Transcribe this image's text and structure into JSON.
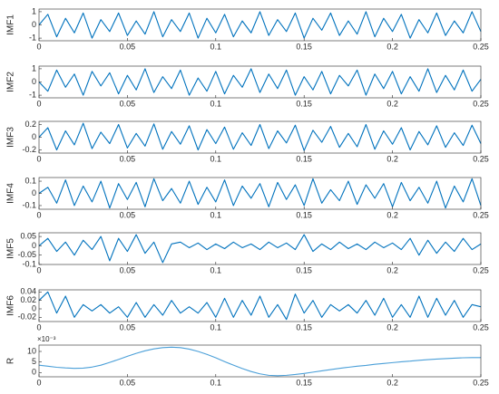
{
  "chart_data": [
    {
      "type": "line",
      "ylabel": "IMF1",
      "color": "#0072bd",
      "xlim": [
        0,
        0.25
      ],
      "xticks": [
        0,
        0.05,
        0.1,
        0.15,
        0.2,
        0.25
      ],
      "ylim": [
        -1.2,
        1.2
      ],
      "yticks": [
        -1,
        0,
        1
      ],
      "x": [
        0,
        0.005,
        0.01,
        0.015,
        0.02,
        0.025,
        0.03,
        0.035,
        0.04,
        0.045,
        0.05,
        0.055,
        0.06,
        0.065,
        0.07,
        0.075,
        0.08,
        0.085,
        0.09,
        0.095,
        0.1,
        0.105,
        0.11,
        0.115,
        0.12,
        0.125,
        0.13,
        0.135,
        0.14,
        0.145,
        0.15,
        0.155,
        0.16,
        0.165,
        0.17,
        0.175,
        0.18,
        0.185,
        0.19,
        0.195,
        0.2,
        0.205,
        0.21,
        0.215,
        0.22,
        0.225,
        0.23,
        0.235,
        0.24,
        0.245,
        0.25
      ],
      "values": [
        0,
        0.8,
        -0.9,
        0.5,
        -0.6,
        0.9,
        -1,
        0.4,
        -0.5,
        0.9,
        -0.8,
        0.3,
        -0.7,
        1,
        -0.9,
        0.4,
        -0.5,
        0.9,
        -1,
        0.5,
        -0.6,
        0.8,
        -0.9,
        0.3,
        -0.6,
        1,
        -0.8,
        0.4,
        -0.5,
        0.9,
        -1,
        0.5,
        -0.4,
        0.9,
        -0.8,
        0.3,
        -0.7,
        1,
        -0.9,
        0.5,
        -0.5,
        0.8,
        -1,
        0.4,
        -0.6,
        0.9,
        -0.8,
        0.3,
        -0.6,
        1,
        -0.5
      ]
    },
    {
      "type": "line",
      "ylabel": "IMF2",
      "color": "#0072bd",
      "xlim": [
        0,
        0.25
      ],
      "xticks": [
        0,
        0.05,
        0.1,
        0.15,
        0.2,
        0.25
      ],
      "ylim": [
        -1.2,
        1.2
      ],
      "yticks": [
        -1,
        0,
        1
      ],
      "x": [
        0,
        0.005,
        0.01,
        0.015,
        0.02,
        0.025,
        0.03,
        0.035,
        0.04,
        0.045,
        0.05,
        0.055,
        0.06,
        0.065,
        0.07,
        0.075,
        0.08,
        0.085,
        0.09,
        0.095,
        0.1,
        0.105,
        0.11,
        0.115,
        0.12,
        0.125,
        0.13,
        0.135,
        0.14,
        0.145,
        0.15,
        0.155,
        0.16,
        0.165,
        0.17,
        0.175,
        0.18,
        0.185,
        0.19,
        0.195,
        0.2,
        0.205,
        0.21,
        0.215,
        0.22,
        0.225,
        0.23,
        0.235,
        0.24,
        0.245,
        0.25
      ],
      "values": [
        0,
        -0.7,
        0.9,
        -0.4,
        0.6,
        -1,
        0.8,
        -0.3,
        0.7,
        -0.9,
        0.5,
        -0.6,
        1,
        -0.8,
        0.4,
        -0.5,
        0.9,
        -1,
        0.3,
        -0.7,
        0.8,
        -0.9,
        0.5,
        -0.4,
        1,
        -0.8,
        0.6,
        -0.5,
        0.9,
        -1,
        0.4,
        -0.6,
        0.8,
        -0.9,
        0.5,
        -0.3,
        0.9,
        -1,
        0.6,
        -0.5,
        0.8,
        -0.9,
        0.4,
        -0.7,
        1,
        -0.8,
        0.5,
        -0.6,
        0.9,
        -0.7,
        0.2
      ]
    },
    {
      "type": "line",
      "ylabel": "IMF3",
      "color": "#0072bd",
      "xlim": [
        0,
        0.25
      ],
      "xticks": [
        0,
        0.05,
        0.1,
        0.15,
        0.2,
        0.25
      ],
      "ylim": [
        -0.25,
        0.25
      ],
      "yticks": [
        -0.2,
        0,
        0.2
      ],
      "x": [
        0,
        0.005,
        0.01,
        0.015,
        0.02,
        0.025,
        0.03,
        0.035,
        0.04,
        0.045,
        0.05,
        0.055,
        0.06,
        0.065,
        0.07,
        0.075,
        0.08,
        0.085,
        0.09,
        0.095,
        0.1,
        0.105,
        0.11,
        0.115,
        0.12,
        0.125,
        0.13,
        0.135,
        0.14,
        0.145,
        0.15,
        0.155,
        0.16,
        0.165,
        0.17,
        0.175,
        0.18,
        0.185,
        0.19,
        0.195,
        0.2,
        0.205,
        0.21,
        0.215,
        0.22,
        0.225,
        0.23,
        0.235,
        0.24,
        0.245,
        0.25
      ],
      "values": [
        0,
        0.15,
        -0.2,
        0.1,
        -0.12,
        0.22,
        -0.18,
        0.08,
        -0.1,
        0.2,
        -0.17,
        0.06,
        -0.14,
        0.21,
        -0.19,
        0.09,
        -0.11,
        0.18,
        -0.2,
        0.12,
        -0.1,
        0.16,
        -0.19,
        0.07,
        -0.13,
        0.2,
        -0.18,
        0.1,
        -0.09,
        0.19,
        -0.21,
        0.11,
        -0.08,
        0.17,
        -0.16,
        0.06,
        -0.15,
        0.2,
        -0.19,
        0.1,
        -0.11,
        0.15,
        -0.2,
        0.09,
        -0.12,
        0.18,
        -0.16,
        0.07,
        -0.13,
        0.19,
        -0.1
      ]
    },
    {
      "type": "line",
      "ylabel": "IMF4",
      "color": "#0072bd",
      "xlim": [
        0,
        0.25
      ],
      "xticks": [
        0,
        0.05,
        0.1,
        0.15,
        0.2,
        0.25
      ],
      "ylim": [
        -0.13,
        0.13
      ],
      "yticks": [
        -0.1,
        0,
        0.1
      ],
      "x": [
        0,
        0.005,
        0.01,
        0.015,
        0.02,
        0.025,
        0.03,
        0.035,
        0.04,
        0.045,
        0.05,
        0.055,
        0.06,
        0.065,
        0.07,
        0.075,
        0.08,
        0.085,
        0.09,
        0.095,
        0.1,
        0.105,
        0.11,
        0.115,
        0.12,
        0.125,
        0.13,
        0.135,
        0.14,
        0.145,
        0.15,
        0.155,
        0.16,
        0.165,
        0.17,
        0.175,
        0.18,
        0.185,
        0.19,
        0.195,
        0.2,
        0.205,
        0.21,
        0.215,
        0.22,
        0.225,
        0.23,
        0.235,
        0.24,
        0.245,
        0.25
      ],
      "values": [
        0,
        0.05,
        -0.08,
        0.11,
        -0.1,
        0.06,
        -0.07,
        0.1,
        -0.12,
        0.08,
        -0.05,
        0.09,
        -0.11,
        0.12,
        -0.06,
        0.04,
        -0.08,
        0.1,
        -0.09,
        0.05,
        -0.07,
        0.11,
        -0.1,
        0.06,
        -0.04,
        0.08,
        -0.11,
        0.09,
        -0.05,
        0.07,
        -0.1,
        0.12,
        -0.08,
        0.03,
        -0.06,
        0.1,
        -0.09,
        0.07,
        -0.04,
        0.08,
        -0.11,
        0.09,
        -0.06,
        0.05,
        -0.08,
        0.1,
        -0.12,
        0.06,
        -0.07,
        0.12,
        -0.1
      ]
    },
    {
      "type": "line",
      "ylabel": "IMF5",
      "color": "#0072bd",
      "xlim": [
        0,
        0.25
      ],
      "xticks": [
        0,
        0.05,
        0.1,
        0.15,
        0.2,
        0.25
      ],
      "ylim": [
        -0.1,
        0.07
      ],
      "yticks": [
        -0.1,
        -0.05,
        0,
        0.05
      ],
      "x": [
        0,
        0.005,
        0.01,
        0.015,
        0.02,
        0.025,
        0.03,
        0.035,
        0.04,
        0.045,
        0.05,
        0.055,
        0.06,
        0.065,
        0.07,
        0.075,
        0.08,
        0.085,
        0.09,
        0.095,
        0.1,
        0.105,
        0.11,
        0.115,
        0.12,
        0.125,
        0.13,
        0.135,
        0.14,
        0.145,
        0.15,
        0.155,
        0.16,
        0.165,
        0.17,
        0.175,
        0.18,
        0.185,
        0.19,
        0.195,
        0.2,
        0.205,
        0.21,
        0.215,
        0.22,
        0.225,
        0.23,
        0.235,
        0.24,
        0.245,
        0.25
      ],
      "values": [
        0,
        0.04,
        -0.03,
        0.02,
        -0.05,
        0.03,
        -0.02,
        0.05,
        -0.08,
        0.04,
        -0.03,
        0.06,
        -0.04,
        0.02,
        -0.09,
        0.01,
        0.02,
        -0.01,
        0.015,
        -0.02,
        0.01,
        -0.015,
        0.02,
        -0.01,
        0.01,
        -0.02,
        0.02,
        -0.01,
        0.015,
        -0.02,
        0.06,
        -0.03,
        0.01,
        -0.02,
        0.02,
        -0.015,
        0.01,
        -0.02,
        0.02,
        -0.01,
        0.015,
        -0.02,
        0.04,
        -0.05,
        0.03,
        -0.04,
        0.02,
        -0.03,
        0.04,
        -0.02,
        0.01
      ]
    },
    {
      "type": "line",
      "ylabel": "IMF6",
      "color": "#0072bd",
      "xlim": [
        0,
        0.25
      ],
      "xticks": [
        0,
        0.05,
        0.1,
        0.15,
        0.2,
        0.25
      ],
      "ylim": [
        -0.03,
        0.045
      ],
      "yticks": [
        -0.02,
        0,
        0.02,
        0.04
      ],
      "x": [
        0,
        0.005,
        0.01,
        0.015,
        0.02,
        0.025,
        0.03,
        0.035,
        0.04,
        0.045,
        0.05,
        0.055,
        0.06,
        0.065,
        0.07,
        0.075,
        0.08,
        0.085,
        0.09,
        0.095,
        0.1,
        0.105,
        0.11,
        0.115,
        0.12,
        0.125,
        0.13,
        0.135,
        0.14,
        0.145,
        0.15,
        0.155,
        0.16,
        0.165,
        0.17,
        0.175,
        0.18,
        0.185,
        0.19,
        0.195,
        0.2,
        0.205,
        0.21,
        0.215,
        0.22,
        0.225,
        0.23,
        0.235,
        0.24,
        0.245,
        0.25
      ],
      "values": [
        0.02,
        0.04,
        -0.01,
        0.03,
        -0.02,
        0.01,
        -0.005,
        0.01,
        -0.01,
        0.005,
        -0.02,
        0.015,
        -0.02,
        0.01,
        -0.015,
        0.02,
        -0.01,
        0.005,
        -0.01,
        0.015,
        -0.02,
        0.025,
        -0.02,
        0.02,
        -0.015,
        0.03,
        -0.02,
        0.01,
        -0.025,
        0.035,
        -0.01,
        0.02,
        -0.02,
        0.01,
        -0.005,
        0.01,
        -0.01,
        0.02,
        -0.015,
        0.025,
        -0.02,
        0.01,
        -0.02,
        0.03,
        -0.02,
        0.025,
        -0.015,
        0.02,
        -0.02,
        0.01,
        0.005
      ]
    },
    {
      "type": "line",
      "ylabel": "R",
      "exponent_label": "×10⁻³",
      "color": "#4a9fd8",
      "xlim": [
        0,
        0.25
      ],
      "xticks": [
        0,
        0.05,
        0.1,
        0.15,
        0.2,
        0.25
      ],
      "ylim": [
        -2,
        13
      ],
      "yticks": [
        0,
        5,
        10
      ],
      "x": [
        0,
        0.005,
        0.01,
        0.015,
        0.02,
        0.025,
        0.03,
        0.035,
        0.04,
        0.045,
        0.05,
        0.055,
        0.06,
        0.065,
        0.07,
        0.075,
        0.08,
        0.085,
        0.09,
        0.095,
        0.1,
        0.105,
        0.11,
        0.115,
        0.12,
        0.125,
        0.13,
        0.135,
        0.14,
        0.145,
        0.15,
        0.155,
        0.16,
        0.165,
        0.17,
        0.175,
        0.18,
        0.185,
        0.19,
        0.195,
        0.2,
        0.205,
        0.21,
        0.215,
        0.22,
        0.225,
        0.23,
        0.235,
        0.24,
        0.245,
        0.25
      ],
      "values": [
        3.5,
        3.0,
        2.5,
        2.2,
        2.0,
        2.1,
        2.6,
        3.5,
        4.8,
        6.2,
        7.7,
        9.1,
        10.3,
        11.2,
        11.8,
        12.0,
        11.8,
        11.1,
        10.0,
        8.6,
        7.0,
        5.2,
        3.5,
        1.9,
        0.5,
        -0.6,
        -1.3,
        -1.5,
        -1.3,
        -0.9,
        -0.4,
        0.2,
        0.8,
        1.4,
        2.0,
        2.5,
        3.0,
        3.4,
        3.9,
        4.3,
        4.7,
        5.1,
        5.4,
        5.8,
        6.1,
        6.4,
        6.6,
        6.8,
        7.0,
        7.1,
        7.1
      ]
    }
  ]
}
